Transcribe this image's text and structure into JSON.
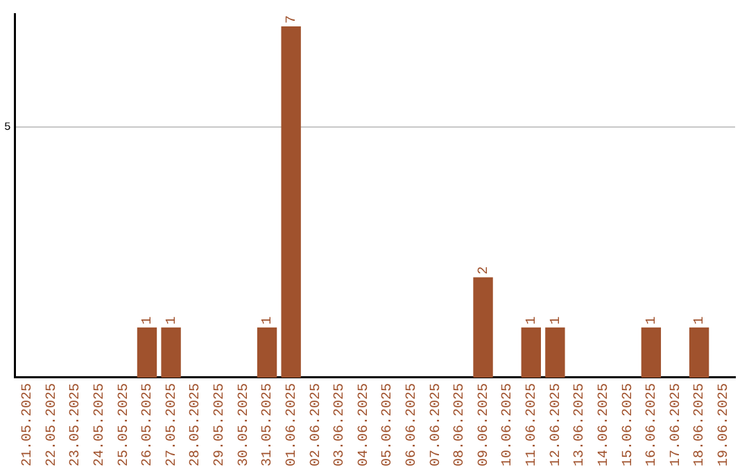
{
  "chart_data": {
    "type": "bar",
    "categories": [
      "21.05.2025",
      "22.05.2025",
      "23.05.2025",
      "24.05.2025",
      "25.05.2025",
      "26.05.2025",
      "27.05.2025",
      "28.05.2025",
      "29.05.2025",
      "30.05.2025",
      "31.05.2025",
      "01.06.2025",
      "02.06.2025",
      "03.06.2025",
      "04.06.2025",
      "05.06.2025",
      "06.06.2025",
      "07.06.2025",
      "08.06.2025",
      "09.06.2025",
      "10.06.2025",
      "11.06.2025",
      "12.06.2025",
      "13.06.2025",
      "14.06.2025",
      "15.06.2025",
      "16.06.2025",
      "17.06.2025",
      "18.06.2025",
      "19.06.2025"
    ],
    "values": [
      0,
      0,
      0,
      0,
      0,
      1,
      1,
      0,
      0,
      0,
      1,
      7,
      0,
      0,
      0,
      0,
      0,
      0,
      0,
      2,
      0,
      1,
      1,
      0,
      0,
      0,
      1,
      0,
      1,
      0
    ],
    "color": "#a0522d",
    "value_labels": [
      null,
      null,
      null,
      null,
      null,
      "1",
      "1",
      null,
      null,
      null,
      "1",
      "7",
      null,
      null,
      null,
      null,
      null,
      null,
      null,
      "2",
      null,
      "1",
      "1",
      null,
      null,
      null,
      "1",
      null,
      "1",
      null
    ],
    "ylim": [
      0,
      7.25
    ],
    "yticks": [
      5
    ],
    "grid": "y"
  }
}
